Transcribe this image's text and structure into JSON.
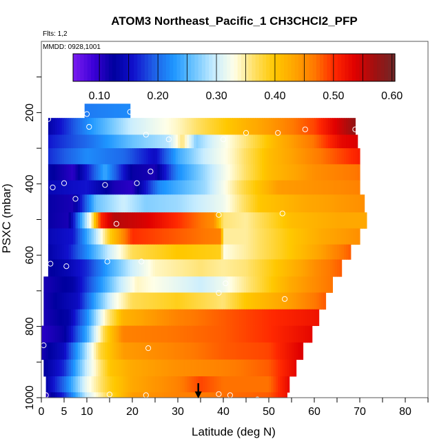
{
  "chart_data": {
    "type": "heatmap",
    "title": "ATOM3 Northeast_Pacific_1 CH3CHCl2_PFP",
    "flights_note": "Flts: 1,2",
    "date_note": "MMDD: 0928,1001",
    "xlabel": "Latitude (deg N)",
    "ylabel": "PSXC (mbar)",
    "xlim": [
      0,
      85
    ],
    "ylim": [
      1000,
      0
    ],
    "x_ticks": [
      0,
      5,
      10,
      20,
      30,
      40,
      50,
      60,
      70,
      80
    ],
    "y_ticks": [
      200,
      400,
      600,
      800,
      1000
    ],
    "colorbar": {
      "range": [
        0.055,
        0.605
      ],
      "ticks": [
        0.1,
        0.2,
        0.3,
        0.4,
        0.5,
        0.6
      ],
      "tick_labels": [
        "0.10",
        "0.20",
        "0.30",
        "0.40",
        "0.50",
        "0.60"
      ],
      "stops": [
        "#7a1cf0",
        "#3d00d8",
        "#00009e",
        "#1010cc",
        "#1e5ee6",
        "#1e96ff",
        "#6cc4ff",
        "#c6ecff",
        "#ffffe8",
        "#ffe066",
        "#ffc800",
        "#ffa500",
        "#ff7800",
        "#ff2800",
        "#e00000",
        "#a01010",
        "#702828"
      ]
    },
    "pressure_bands": [
      {
        "p_top": 175,
        "p_bot": 215,
        "x0": 9.5,
        "x1": 19.5,
        "anchors": [
          [
            9.5,
            0.21
          ],
          [
            19.5,
            0.22
          ]
        ]
      },
      {
        "p_top": 215,
        "p_bot": 262,
        "x0": 1.5,
        "x1": 69,
        "anchors": [
          [
            1.5,
            0.13
          ],
          [
            10,
            0.22
          ],
          [
            20,
            0.3
          ],
          [
            30,
            0.34
          ],
          [
            37,
            0.38
          ],
          [
            45,
            0.42
          ],
          [
            52,
            0.45
          ],
          [
            60,
            0.49
          ],
          [
            64,
            0.53
          ],
          [
            69,
            0.58
          ]
        ]
      },
      {
        "p_top": 262,
        "p_bot": 300,
        "x0": 1.5,
        "x1": 69.5,
        "anchors": [
          [
            1.5,
            0.16
          ],
          [
            10,
            0.2
          ],
          [
            15,
            0.23
          ],
          [
            20,
            0.26
          ],
          [
            28,
            0.29
          ],
          [
            31,
            0.36
          ],
          [
            34,
            0.27
          ],
          [
            38,
            0.31
          ],
          [
            45,
            0.36
          ],
          [
            52,
            0.42
          ],
          [
            60,
            0.47
          ],
          [
            66,
            0.53
          ],
          [
            69.5,
            0.54
          ]
        ]
      },
      {
        "p_top": 300,
        "p_bot": 345,
        "x0": 1.5,
        "x1": 70,
        "anchors": [
          [
            1.5,
            0.17
          ],
          [
            10,
            0.22
          ],
          [
            18,
            0.2
          ],
          [
            25,
            0.15
          ],
          [
            30,
            0.24
          ],
          [
            36,
            0.3
          ],
          [
            42,
            0.34
          ],
          [
            50,
            0.41
          ],
          [
            60,
            0.46
          ],
          [
            70,
            0.51
          ]
        ]
      },
      {
        "p_top": 345,
        "p_bot": 390,
        "x0": 1.5,
        "x1": 70,
        "anchors": [
          [
            1.5,
            0.13
          ],
          [
            7,
            0.1
          ],
          [
            14,
            0.24
          ],
          [
            20,
            0.12
          ],
          [
            25,
            0.11
          ],
          [
            30,
            0.22
          ],
          [
            40,
            0.32
          ],
          [
            50,
            0.41
          ],
          [
            60,
            0.45
          ],
          [
            70,
            0.47
          ]
        ]
      },
      {
        "p_top": 390,
        "p_bot": 430,
        "x0": 1.5,
        "x1": 70,
        "anchors": [
          [
            1.5,
            0.14
          ],
          [
            10,
            0.16
          ],
          [
            16,
            0.11
          ],
          [
            20,
            0.1
          ],
          [
            26,
            0.22
          ],
          [
            36,
            0.28
          ],
          [
            45,
            0.38
          ],
          [
            52,
            0.44
          ],
          [
            62,
            0.45
          ],
          [
            70,
            0.46
          ]
        ]
      },
      {
        "p_top": 430,
        "p_bot": 480,
        "x0": 1.5,
        "x1": 71,
        "anchors": [
          [
            1.5,
            0.12
          ],
          [
            7,
            0.11
          ],
          [
            12,
            0.26
          ],
          [
            18,
            0.3
          ],
          [
            23,
            0.27
          ],
          [
            30,
            0.28
          ],
          [
            40,
            0.32
          ],
          [
            48,
            0.4
          ],
          [
            58,
            0.43
          ],
          [
            71,
            0.45
          ]
        ]
      },
      {
        "p_top": 480,
        "p_bot": 525,
        "x0": 1.5,
        "x1": 71.5,
        "anchors": [
          [
            1.5,
            0.12
          ],
          [
            6,
            0.11
          ],
          [
            11,
            0.34
          ],
          [
            13,
            0.5
          ],
          [
            16,
            0.56
          ],
          [
            23,
            0.54
          ],
          [
            30,
            0.5
          ],
          [
            38,
            0.45
          ],
          [
            40,
            0.36
          ],
          [
            45,
            0.35
          ],
          [
            55,
            0.41
          ],
          [
            65,
            0.43
          ],
          [
            71.5,
            0.43
          ]
        ]
      },
      {
        "p_top": 525,
        "p_bot": 570,
        "x0": 1.5,
        "x1": 70,
        "anchors": [
          [
            1.5,
            0.14
          ],
          [
            7,
            0.16
          ],
          [
            12,
            0.29
          ],
          [
            15,
            0.39
          ],
          [
            20,
            0.5
          ],
          [
            30,
            0.48
          ],
          [
            39.5,
            0.46
          ],
          [
            40,
            0.35
          ],
          [
            45,
            0.35
          ],
          [
            55,
            0.4
          ],
          [
            62,
            0.43
          ],
          [
            70,
            0.45
          ]
        ]
      },
      {
        "p_top": 570,
        "p_bot": 612,
        "x0": 1.5,
        "x1": 68,
        "anchors": [
          [
            1.5,
            0.13
          ],
          [
            6,
            0.16
          ],
          [
            10,
            0.22
          ],
          [
            15,
            0.3
          ],
          [
            20,
            0.37
          ],
          [
            30,
            0.4
          ],
          [
            39.5,
            0.39
          ],
          [
            40,
            0.33
          ],
          [
            45,
            0.35
          ],
          [
            55,
            0.4
          ],
          [
            62,
            0.44
          ],
          [
            68,
            0.48
          ]
        ]
      },
      {
        "p_top": 612,
        "p_bot": 660,
        "x0": 1.5,
        "x1": 66,
        "anchors": [
          [
            1.5,
            0.12
          ],
          [
            6,
            0.14
          ],
          [
            10,
            0.17
          ],
          [
            15,
            0.24
          ],
          [
            20,
            0.3
          ],
          [
            25,
            0.34
          ],
          [
            35,
            0.36
          ],
          [
            40,
            0.35
          ],
          [
            45,
            0.36
          ],
          [
            55,
            0.42
          ],
          [
            60,
            0.45
          ],
          [
            66,
            0.48
          ]
        ]
      },
      {
        "p_top": 660,
        "p_bot": 705,
        "x0": 0.5,
        "x1": 64,
        "anchors": [
          [
            0.5,
            0.11
          ],
          [
            7,
            0.13
          ],
          [
            12,
            0.21
          ],
          [
            17,
            0.29
          ],
          [
            21,
            0.34
          ],
          [
            28,
            0.32
          ],
          [
            35,
            0.3
          ],
          [
            40,
            0.32
          ],
          [
            47,
            0.37
          ],
          [
            55,
            0.43
          ],
          [
            64,
            0.47
          ]
        ]
      },
      {
        "p_top": 705,
        "p_bot": 752,
        "x0": 0.5,
        "x1": 62.5,
        "anchors": [
          [
            0.5,
            0.11
          ],
          [
            8,
            0.15
          ],
          [
            12,
            0.24
          ],
          [
            16,
            0.32
          ],
          [
            20,
            0.37
          ],
          [
            30,
            0.39
          ],
          [
            40,
            0.36
          ],
          [
            45,
            0.4
          ],
          [
            55,
            0.44
          ],
          [
            62.5,
            0.48
          ]
        ]
      },
      {
        "p_top": 752,
        "p_bot": 798,
        "x0": 0.5,
        "x1": 61,
        "anchors": [
          [
            0.5,
            0.11
          ],
          [
            6,
            0.13
          ],
          [
            10,
            0.22
          ],
          [
            14,
            0.34
          ],
          [
            18,
            0.42
          ],
          [
            30,
            0.46
          ],
          [
            40,
            0.48
          ],
          [
            50,
            0.5
          ],
          [
            61,
            0.52
          ]
        ]
      },
      {
        "p_top": 798,
        "p_bot": 845,
        "x0": 0,
        "x1": 59.5,
        "anchors": [
          [
            0,
            0.1
          ],
          [
            5,
            0.12
          ],
          [
            10,
            0.24
          ],
          [
            14,
            0.38
          ],
          [
            18,
            0.46
          ],
          [
            30,
            0.47
          ],
          [
            40,
            0.48
          ],
          [
            50,
            0.5
          ],
          [
            59.5,
            0.53
          ]
        ]
      },
      {
        "p_top": 845,
        "p_bot": 893,
        "x0": 0,
        "x1": 57.5,
        "anchors": [
          [
            0,
            0.11
          ],
          [
            5,
            0.15
          ],
          [
            9,
            0.26
          ],
          [
            13,
            0.38
          ],
          [
            18,
            0.44
          ],
          [
            30,
            0.46
          ],
          [
            40,
            0.48
          ],
          [
            50,
            0.49
          ],
          [
            57.5,
            0.54
          ]
        ]
      },
      {
        "p_top": 893,
        "p_bot": 940,
        "x0": 0.5,
        "x1": 56,
        "anchors": [
          [
            0.5,
            0.12
          ],
          [
            5,
            0.17
          ],
          [
            10,
            0.3
          ],
          [
            15,
            0.4
          ],
          [
            20,
            0.43
          ],
          [
            30,
            0.45
          ],
          [
            40,
            0.46
          ],
          [
            50,
            0.48
          ],
          [
            56,
            0.53
          ]
        ]
      },
      {
        "p_top": 940,
        "p_bot": 985,
        "x0": 1,
        "x1": 54.5,
        "anchors": [
          [
            1,
            0.13
          ],
          [
            5,
            0.2
          ],
          [
            10,
            0.32
          ],
          [
            15,
            0.39
          ],
          [
            20,
            0.43
          ],
          [
            30,
            0.46
          ],
          [
            35,
            0.49
          ],
          [
            40,
            0.47
          ],
          [
            50,
            0.47
          ],
          [
            54.5,
            0.53
          ]
        ]
      },
      {
        "p_top": 985,
        "p_bot": 1020,
        "x0": 1,
        "x1": 54,
        "anchors": [
          [
            1,
            0.1
          ],
          [
            5,
            0.17
          ],
          [
            10,
            0.3
          ],
          [
            15,
            0.38
          ],
          [
            20,
            0.44
          ],
          [
            30,
            0.46
          ],
          [
            40,
            0.47
          ],
          [
            50,
            0.48
          ],
          [
            54,
            0.52
          ]
        ]
      }
    ],
    "sample_points": [
      [
        1.5,
        218
      ],
      [
        10,
        204
      ],
      [
        19.5,
        198
      ],
      [
        10.5,
        240
      ],
      [
        23,
        262
      ],
      [
        28,
        275
      ],
      [
        40,
        275
      ],
      [
        45,
        257
      ],
      [
        52,
        257
      ],
      [
        58,
        247
      ],
      [
        69,
        247
      ],
      [
        24,
        365
      ],
      [
        21,
        398
      ],
      [
        14,
        403
      ],
      [
        5,
        398
      ],
      [
        2.5,
        410
      ],
      [
        7.5,
        442
      ],
      [
        39,
        487
      ],
      [
        53,
        483
      ],
      [
        16.5,
        512
      ],
      [
        2,
        624
      ],
      [
        5.5,
        631
      ],
      [
        14.5,
        618
      ],
      [
        22,
        618
      ],
      [
        40.5,
        679
      ],
      [
        39,
        706
      ],
      [
        53.5,
        723
      ],
      [
        23.5,
        861
      ],
      [
        0.5,
        853
      ],
      [
        1,
        993
      ],
      [
        15,
        991
      ],
      [
        23,
        993
      ],
      [
        39,
        990
      ],
      [
        41.5,
        993
      ],
      [
        47.5,
        1005
      ]
    ],
    "arrow_marker": {
      "x": 34.5
    }
  }
}
